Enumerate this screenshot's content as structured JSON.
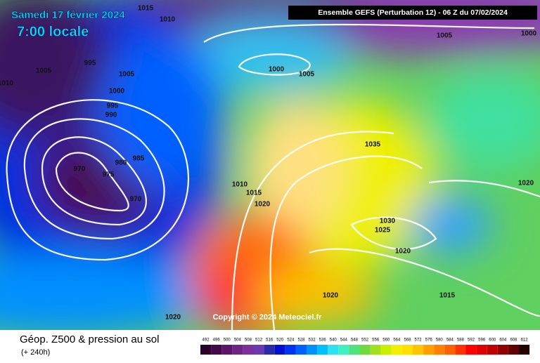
{
  "header": {
    "date": "Samedi 17 février 2024",
    "time": "7:00 locale",
    "run": "Ensemble GEFS  (Perturbation 12)  -  06 Z du 07/02/2024"
  },
  "copyright": "Copyright © 2024 Meteociel.fr",
  "footer": {
    "title": "Géop. Z500 & pression au sol",
    "lead": "(+ 240h)"
  },
  "isobar_labels": [
    1015,
    1010,
    995,
    1005,
    1005,
    1000,
    995,
    990,
    985,
    980,
    970,
    975,
    970,
    1000,
    1005,
    1005,
    1000,
    1010,
    1035,
    1010,
    1015,
    1020,
    1020,
    1030,
    1025,
    1020,
    1020,
    1015,
    1020
  ],
  "legend": {
    "values": [
      492,
      496,
      500,
      504,
      508,
      512,
      516,
      520,
      524,
      528,
      532,
      536,
      540,
      544,
      548,
      552,
      556,
      560,
      564,
      568,
      572,
      576,
      580,
      584,
      588,
      592,
      596,
      600,
      604,
      608,
      612
    ],
    "colors": [
      "#2a002a",
      "#420848",
      "#5a1468",
      "#6e2484",
      "#7c3098",
      "#6a3ab0",
      "#2a2aa8",
      "#0010d0",
      "#0034f0",
      "#0060ff",
      "#0090ff",
      "#00c0ff",
      "#30e0f0",
      "#40f0c0",
      "#50e080",
      "#70d840",
      "#a0e020",
      "#c8f000",
      "#f0f000",
      "#ffe000",
      "#ffc400",
      "#ffa000",
      "#ff8000",
      "#ff6000",
      "#ff3000",
      "#ff0000",
      "#e00000",
      "#c00000",
      "#900000",
      "#600000",
      "#200000"
    ]
  }
}
